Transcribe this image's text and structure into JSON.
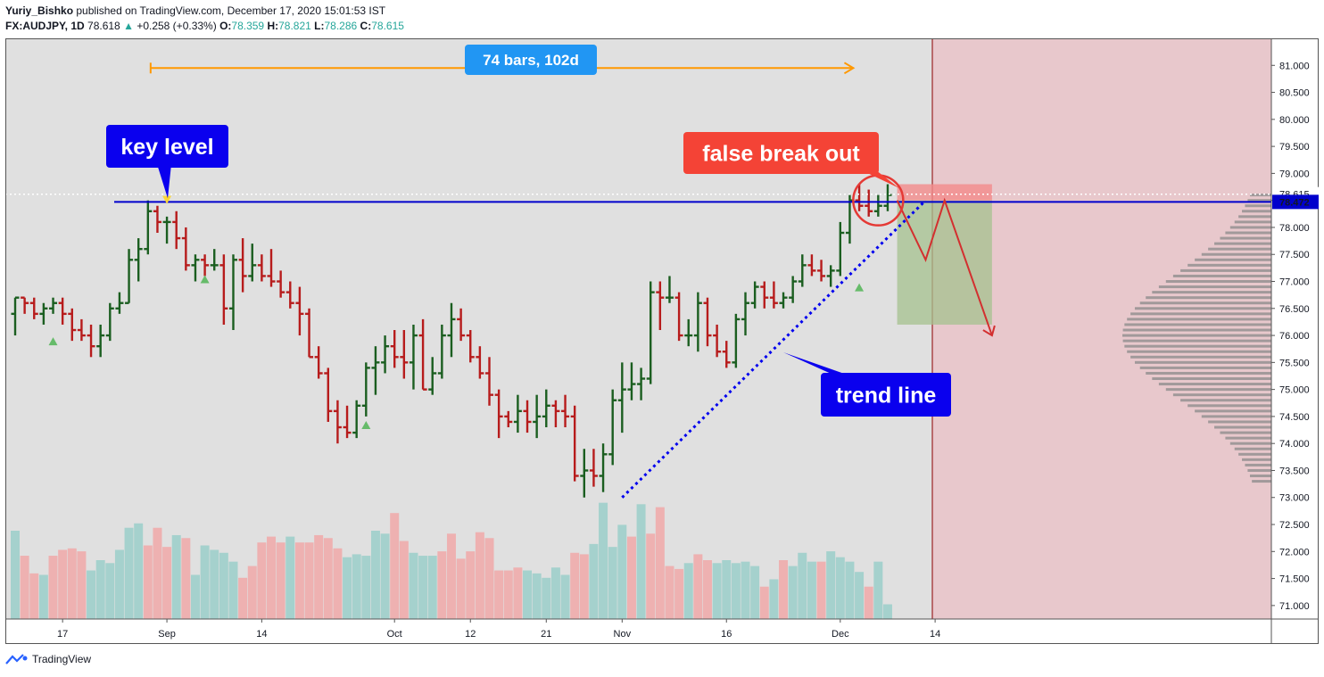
{
  "header": {
    "author": "Yuriy_Bishko",
    "published": "published on TradingView.com, December 17, 2020 15:01:53 IST",
    "symbol": "FX:AUDJPY, 1D",
    "last": "78.618",
    "change_arrow": "▲",
    "change": "+0.258 (+0.33%)",
    "o_label": "O:",
    "o_value": "78.359",
    "h_label": "H:",
    "h_value": "78.821",
    "l_label": "L:",
    "l_value": "78.286",
    "c_label": "C:",
    "c_value": "78.615"
  },
  "footer": {
    "brand": "TradingView",
    "logo_icon": "tradingview-logo-icon"
  },
  "colors": {
    "up": "#1b5e20",
    "down": "#b71c1c",
    "vol_up": "#a5d1cd",
    "vol_down": "#eeb1b1",
    "background": "#e0e0e0",
    "future_zone": "#e8c8cc",
    "key_level": "#0000cc",
    "trend_line": "#0000ee",
    "range_arrow": "#ff9800",
    "range_label_bg": "#2196f3",
    "callout_red": "#f44336",
    "callout_blue": "#0a00ee",
    "price_line": "#ffffff",
    "tp_zone": "#a5c28f",
    "sl_zone": "#f28b8b",
    "signal_up": "#66bb6a",
    "signal_down": "#fdd835",
    "vp": "#8a8a8a"
  },
  "annotations": {
    "range_label": "74 bars, 102d",
    "key_level": "key level",
    "false_breakout": "false break out",
    "trend_line": "trend line"
  },
  "chart_data": {
    "type": "ohlc",
    "symbol": "FX:AUDJPY",
    "interval": "1D",
    "ylim": [
      70.75,
      81.5
    ],
    "y_ticks": [
      "81.000",
      "80.500",
      "80.000",
      "79.500",
      "79.000",
      "78.500",
      "78.000",
      "77.500",
      "77.000",
      "76.500",
      "76.000",
      "75.500",
      "75.000",
      "74.500",
      "74.000",
      "73.500",
      "73.000",
      "72.500",
      "72.000",
      "71.500",
      "71.000"
    ],
    "price_labels": {
      "current": "78.615",
      "key_level": "78.472"
    },
    "x_ticks": [
      {
        "bar": 5,
        "label": "17"
      },
      {
        "bar": 16,
        "label": "Sep"
      },
      {
        "bar": 26,
        "label": "14"
      },
      {
        "bar": 40,
        "label": "Oct"
      },
      {
        "bar": 48,
        "label": "12"
      },
      {
        "bar": 56,
        "label": "21"
      },
      {
        "bar": 64,
        "label": "Nov"
      },
      {
        "bar": 75,
        "label": "16"
      },
      {
        "bar": 87,
        "label": "Dec"
      },
      {
        "bar": 97,
        "label": "14"
      }
    ],
    "bars": [
      [
        76.4,
        76.7,
        76.0,
        76.7
      ],
      [
        76.7,
        76.7,
        76.4,
        76.6
      ],
      [
        76.6,
        76.7,
        76.3,
        76.4
      ],
      [
        76.4,
        76.6,
        76.2,
        76.5
      ],
      [
        76.5,
        76.7,
        76.4,
        76.6
      ],
      [
        76.6,
        76.7,
        76.2,
        76.4
      ],
      [
        76.4,
        76.5,
        75.9,
        76.1
      ],
      [
        76.1,
        76.3,
        75.9,
        76.0
      ],
      [
        76.0,
        76.2,
        75.6,
        75.8
      ],
      [
        75.8,
        76.2,
        75.6,
        76.0
      ],
      [
        76.0,
        76.6,
        75.9,
        76.5
      ],
      [
        76.5,
        76.8,
        76.4,
        76.6
      ],
      [
        76.6,
        77.6,
        76.6,
        77.4
      ],
      [
        77.4,
        77.8,
        77.0,
        77.6
      ],
      [
        77.6,
        78.5,
        77.5,
        78.3
      ],
      [
        78.3,
        78.4,
        77.9,
        78.1
      ],
      [
        78.1,
        78.2,
        77.7,
        78.1
      ],
      [
        78.1,
        78.3,
        77.6,
        77.8
      ],
      [
        77.8,
        78.0,
        77.2,
        77.3
      ],
      [
        77.3,
        77.5,
        77.0,
        77.4
      ],
      [
        77.4,
        77.5,
        77.1,
        77.3
      ],
      [
        77.3,
        77.6,
        77.2,
        77.3
      ],
      [
        77.3,
        77.5,
        76.2,
        76.5
      ],
      [
        76.5,
        77.5,
        76.1,
        77.4
      ],
      [
        77.4,
        77.8,
        76.8,
        77.1
      ],
      [
        77.1,
        77.7,
        77.0,
        77.3
      ],
      [
        77.3,
        77.5,
        77.0,
        77.1
      ],
      [
        77.1,
        77.6,
        76.9,
        77.0
      ],
      [
        77.0,
        77.2,
        76.7,
        76.8
      ],
      [
        76.8,
        77.0,
        76.5,
        76.6
      ],
      [
        76.6,
        76.9,
        76.0,
        76.4
      ],
      [
        76.4,
        76.5,
        75.6,
        75.6
      ],
      [
        75.6,
        75.8,
        75.2,
        75.3
      ],
      [
        75.3,
        75.4,
        74.4,
        74.6
      ],
      [
        74.6,
        74.8,
        74.0,
        74.3
      ],
      [
        74.3,
        74.7,
        74.1,
        74.2
      ],
      [
        74.2,
        74.8,
        74.1,
        74.7
      ],
      [
        74.7,
        75.5,
        74.5,
        75.4
      ],
      [
        75.4,
        75.8,
        74.9,
        75.5
      ],
      [
        75.5,
        76.0,
        75.3,
        75.8
      ],
      [
        75.8,
        76.1,
        75.4,
        75.6
      ],
      [
        75.6,
        76.1,
        75.2,
        75.5
      ],
      [
        75.5,
        76.2,
        75.0,
        76.0
      ],
      [
        76.0,
        76.3,
        75.0,
        75.0
      ],
      [
        75.0,
        75.6,
        74.9,
        75.3
      ],
      [
        75.3,
        76.2,
        75.2,
        76.0
      ],
      [
        76.0,
        76.6,
        75.6,
        76.3
      ],
      [
        76.3,
        76.5,
        75.9,
        76.0
      ],
      [
        76.0,
        76.1,
        75.5,
        75.6
      ],
      [
        75.6,
        75.8,
        75.2,
        75.3
      ],
      [
        75.3,
        75.6,
        74.7,
        74.9
      ],
      [
        74.9,
        75.0,
        74.1,
        74.5
      ],
      [
        74.5,
        74.6,
        74.3,
        74.4
      ],
      [
        74.4,
        74.9,
        74.2,
        74.6
      ],
      [
        74.6,
        74.8,
        74.2,
        74.4
      ],
      [
        74.4,
        74.9,
        74.1,
        74.5
      ],
      [
        74.5,
        75.0,
        74.3,
        74.7
      ],
      [
        74.7,
        74.8,
        74.3,
        74.6
      ],
      [
        74.6,
        74.9,
        74.3,
        74.5
      ],
      [
        74.5,
        74.7,
        73.3,
        73.4
      ],
      [
        73.4,
        73.9,
        73.0,
        73.5
      ],
      [
        73.5,
        73.9,
        73.2,
        73.4
      ],
      [
        73.4,
        74.0,
        73.1,
        73.8
      ],
      [
        73.8,
        75.0,
        73.6,
        74.8
      ],
      [
        74.8,
        75.5,
        74.2,
        75.0
      ],
      [
        75.0,
        75.5,
        74.8,
        75.1
      ],
      [
        75.1,
        75.4,
        74.8,
        75.2
      ],
      [
        75.2,
        77.0,
        75.1,
        76.8
      ],
      [
        76.8,
        77.0,
        76.1,
        76.7
      ],
      [
        76.7,
        77.1,
        76.6,
        76.7
      ],
      [
        76.7,
        76.8,
        75.9,
        76.0
      ],
      [
        76.0,
        76.3,
        75.8,
        76.0
      ],
      [
        76.0,
        76.8,
        75.7,
        76.6
      ],
      [
        76.6,
        76.7,
        75.8,
        76.0
      ],
      [
        76.0,
        76.2,
        75.6,
        75.7
      ],
      [
        75.7,
        75.9,
        75.4,
        75.5
      ],
      [
        75.5,
        76.4,
        75.4,
        76.3
      ],
      [
        76.3,
        76.8,
        76.0,
        76.6
      ],
      [
        76.6,
        77.0,
        76.5,
        76.9
      ],
      [
        76.9,
        77.0,
        76.5,
        76.7
      ],
      [
        76.7,
        77.0,
        76.5,
        76.6
      ],
      [
        76.6,
        76.8,
        76.5,
        76.7
      ],
      [
        76.7,
        77.1,
        76.6,
        77.0
      ],
      [
        77.0,
        77.5,
        76.9,
        77.3
      ],
      [
        77.3,
        77.5,
        77.1,
        77.2
      ],
      [
        77.2,
        77.4,
        77.0,
        77.1
      ],
      [
        77.1,
        77.3,
        76.9,
        77.2
      ],
      [
        77.2,
        78.1,
        77.1,
        77.9
      ],
      [
        77.9,
        78.6,
        77.7,
        78.5
      ],
      [
        78.5,
        78.8,
        78.3,
        78.4
      ],
      [
        78.4,
        78.7,
        78.2,
        78.3
      ],
      [
        78.3,
        78.6,
        78.2,
        78.4
      ],
      [
        78.4,
        78.8,
        78.3,
        78.6
      ]
    ],
    "volume": [
      [
        0,
        0.6,
        1
      ],
      [
        1,
        0.43,
        0
      ],
      [
        2,
        0.31,
        0
      ],
      [
        3,
        0.3,
        1
      ],
      [
        4,
        0.43,
        0
      ],
      [
        5,
        0.47,
        0
      ],
      [
        6,
        0.48,
        0
      ],
      [
        7,
        0.46,
        0
      ],
      [
        8,
        0.33,
        1
      ],
      [
        9,
        0.4,
        1
      ],
      [
        10,
        0.38,
        1
      ],
      [
        11,
        0.47,
        1
      ],
      [
        12,
        0.62,
        1
      ],
      [
        13,
        0.65,
        1
      ],
      [
        14,
        0.5,
        0
      ],
      [
        15,
        0.62,
        0
      ],
      [
        16,
        0.49,
        0
      ],
      [
        17,
        0.57,
        1
      ],
      [
        18,
        0.55,
        0
      ],
      [
        19,
        0.3,
        1
      ],
      [
        20,
        0.5,
        1
      ],
      [
        21,
        0.47,
        1
      ],
      [
        22,
        0.45,
        1
      ],
      [
        23,
        0.39,
        1
      ],
      [
        24,
        0.28,
        0
      ],
      [
        25,
        0.36,
        0
      ],
      [
        26,
        0.52,
        0
      ],
      [
        27,
        0.56,
        0
      ],
      [
        28,
        0.52,
        0
      ],
      [
        29,
        0.56,
        1
      ],
      [
        30,
        0.52,
        0
      ],
      [
        31,
        0.52,
        0
      ],
      [
        32,
        0.57,
        0
      ],
      [
        33,
        0.55,
        0
      ],
      [
        34,
        0.48,
        0
      ],
      [
        35,
        0.42,
        1
      ],
      [
        36,
        0.44,
        1
      ],
      [
        37,
        0.43,
        1
      ],
      [
        38,
        0.6,
        1
      ],
      [
        39,
        0.58,
        1
      ],
      [
        40,
        0.72,
        0
      ],
      [
        41,
        0.53,
        0
      ],
      [
        42,
        0.45,
        1
      ],
      [
        43,
        0.43,
        1
      ],
      [
        44,
        0.43,
        1
      ],
      [
        45,
        0.46,
        0
      ],
      [
        46,
        0.58,
        0
      ],
      [
        47,
        0.41,
        0
      ],
      [
        48,
        0.46,
        0
      ],
      [
        49,
        0.59,
        0
      ],
      [
        50,
        0.55,
        0
      ],
      [
        51,
        0.33,
        0
      ],
      [
        52,
        0.33,
        0
      ],
      [
        53,
        0.35,
        0
      ],
      [
        54,
        0.33,
        1
      ],
      [
        55,
        0.31,
        1
      ],
      [
        56,
        0.28,
        1
      ],
      [
        57,
        0.35,
        1
      ],
      [
        58,
        0.3,
        1
      ],
      [
        59,
        0.45,
        0
      ],
      [
        60,
        0.44,
        0
      ],
      [
        61,
        0.51,
        1
      ],
      [
        62,
        0.79,
        1
      ],
      [
        63,
        0.49,
        1
      ],
      [
        64,
        0.64,
        1
      ],
      [
        65,
        0.56,
        0
      ],
      [
        66,
        0.78,
        1
      ],
      [
        67,
        0.58,
        0
      ],
      [
        68,
        0.76,
        0
      ],
      [
        69,
        0.36,
        0
      ],
      [
        70,
        0.34,
        0
      ],
      [
        71,
        0.38,
        1
      ],
      [
        72,
        0.44,
        0
      ],
      [
        73,
        0.4,
        0
      ],
      [
        74,
        0.38,
        1
      ],
      [
        75,
        0.4,
        1
      ],
      [
        76,
        0.38,
        1
      ],
      [
        77,
        0.39,
        1
      ],
      [
        78,
        0.36,
        1
      ],
      [
        79,
        0.22,
        0
      ],
      [
        80,
        0.27,
        1
      ],
      [
        81,
        0.4,
        0
      ],
      [
        82,
        0.36,
        1
      ],
      [
        83,
        0.45,
        1
      ],
      [
        84,
        0.39,
        1
      ],
      [
        85,
        0.39,
        0
      ],
      [
        86,
        0.46,
        1
      ],
      [
        87,
        0.42,
        1
      ],
      [
        88,
        0.39,
        1
      ],
      [
        89,
        0.32,
        1
      ],
      [
        90,
        0.22,
        0
      ],
      [
        91,
        0.39,
        1
      ],
      [
        92,
        0.1,
        1
      ]
    ],
    "key_level": 78.472,
    "current_price": 78.615,
    "trend_line": [
      [
        64,
        73.0
      ],
      [
        96,
        78.5
      ]
    ],
    "range_measure": {
      "from_bar": 14,
      "to_bar": 88,
      "label": "74 bars, 102d"
    },
    "signals": [
      {
        "bar": 4,
        "price": 75.9,
        "dir": "up"
      },
      {
        "bar": 16,
        "price": 78.5,
        "dir": "down"
      },
      {
        "bar": 20,
        "price": 77.05,
        "dir": "up"
      },
      {
        "bar": 37,
        "price": 74.35,
        "dir": "up"
      },
      {
        "bar": 89,
        "price": 76.9,
        "dir": "up"
      }
    ],
    "forecast_path": [
      [
        93,
        78.5
      ],
      [
        96,
        77.4
      ],
      [
        98,
        78.5
      ],
      [
        103,
        76.0
      ]
    ],
    "tp_zone": {
      "x0": 93,
      "x1": 103,
      "y0": 76.2,
      "y1": 78.5
    },
    "sl_zone": {
      "x0": 93,
      "x1": 103,
      "y0": 78.5,
      "y1": 78.8
    }
  }
}
